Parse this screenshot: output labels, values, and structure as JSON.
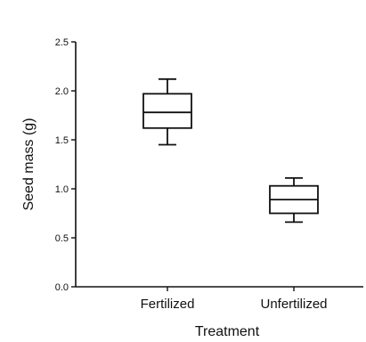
{
  "chart_data": {
    "type": "box",
    "title": "",
    "xlabel": "Treatment",
    "ylabel": "Seed mass (g)",
    "ylim": [
      0.0,
      2.5
    ],
    "yticks": [
      "0.0",
      "0.5",
      "1.0",
      "1.5",
      "2.0",
      "2.5"
    ],
    "categories": [
      "Fertilized",
      "Unfertilized"
    ],
    "boxes": [
      {
        "category": "Fertilized",
        "min": 1.45,
        "q1": 1.62,
        "median": 1.78,
        "q3": 1.97,
        "max": 2.12
      },
      {
        "category": "Unfertilized",
        "min": 0.66,
        "q1": 0.75,
        "median": 0.89,
        "q3": 1.03,
        "max": 1.11
      }
    ],
    "grid": false,
    "colors": {
      "stroke": "#111111",
      "fill": "#ffffff"
    }
  }
}
